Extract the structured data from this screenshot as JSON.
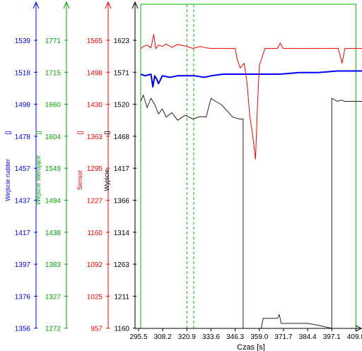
{
  "chart_data": {
    "type": "line",
    "xlabel": "Czas [s]",
    "xlim": [
      295.5,
      413.0
    ],
    "x_ticks": [
      "295.5",
      "308.2",
      "320.9",
      "333.6",
      "346.3",
      "359.0",
      "371.7",
      "384.4",
      "397.1",
      "409.8"
    ],
    "axes": [
      {
        "id": "rudder",
        "label": "Wejście rudder",
        "unit": "[]",
        "color": "#0000ff",
        "ylim": [
          1356,
          1560
        ],
        "ticks": [
          "1539",
          "1518",
          "1498",
          "1478",
          "1457",
          "1437",
          "1417",
          "1397",
          "1376",
          "1356"
        ]
      },
      {
        "id": "sterujace",
        "label": "Wejście sterujące",
        "unit": "[]",
        "color": "#00aa00",
        "ylim": [
          1272,
          1827
        ],
        "ticks": [
          "1771",
          "1715",
          "1660",
          "1604",
          "1549",
          "1494",
          "1438",
          "1383",
          "1327",
          "1272"
        ]
      },
      {
        "id": "sensor",
        "label": "Sensor",
        "unit": "[]",
        "color": "#ff0000",
        "ylim": [
          957,
          1633
        ],
        "ticks": [
          "1565",
          "1498",
          "1430",
          "1363",
          "1295",
          "1227",
          "1160",
          "1092",
          "1025",
          "957"
        ]
      },
      {
        "id": "wyjscie",
        "label": "Wyjście",
        "unit": "[]",
        "color": "#000000",
        "ylim": [
          1160,
          1674
        ],
        "ticks": [
          "1623",
          "1571",
          "1520",
          "1468",
          "1417",
          "1366",
          "1314",
          "1263",
          "1211",
          "1160"
        ]
      }
    ],
    "series": [
      {
        "axis": "sterujace",
        "color": "#00bb00",
        "x": [
          295.5,
          296.6,
          296.6,
          409.8,
          409.8,
          413.0
        ],
        "y": [
          1272,
          1272,
          1827,
          1827,
          1272,
          1272
        ]
      },
      {
        "axis": "rudder",
        "color": "#0000ff",
        "x": [
          296.6,
          299.0,
          302.0,
          303.0,
          304.0,
          305.0,
          306.0,
          308.0,
          312.0,
          316.0,
          320.0,
          325.0,
          330.0,
          333.6,
          340.0,
          350.0,
          360.0,
          370.0,
          380.0,
          390.0,
          400.0,
          413.0
        ],
        "y": [
          1516,
          1515,
          1516,
          1508,
          1515,
          1513,
          1510,
          1515,
          1514,
          1515,
          1515,
          1515,
          1514,
          1515,
          1516,
          1516,
          1516,
          1516,
          1517,
          1517,
          1518,
          1518
        ]
      },
      {
        "axis": "sensor",
        "color": "#ff0000",
        "x": [
          296.6,
          298.0,
          300.0,
          302.0,
          303.5,
          304.5,
          306.0,
          308.0,
          310.0,
          313.0,
          316.0,
          320.0,
          324.0,
          328.0,
          331.0,
          333.6,
          337.0,
          342.0,
          346.3,
          347.5,
          349.0,
          351.0,
          352.5,
          354.0,
          355.5,
          357.0,
          358.0,
          359.0,
          362.0,
          366.0,
          368.5,
          370.0,
          371.5,
          375.0,
          380.0,
          390.0,
          397.1,
          400.5,
          402.5,
          404.0,
          406.0,
          409.8,
          413.0
        ],
        "y": [
          1540,
          1545,
          1548,
          1542,
          1570,
          1540,
          1548,
          1545,
          1550,
          1543,
          1549,
          1546,
          1541,
          1545,
          1542,
          1541,
          1541,
          1541,
          1541,
          1516,
          1500,
          1510,
          1470,
          1400,
          1360,
          1310,
          1420,
          1505,
          1541,
          1541,
          1541,
          1552,
          1541,
          1541,
          1541,
          1541,
          1541,
          1541,
          1510,
          1541,
          1541,
          1541,
          1541
        ]
      },
      {
        "axis": "wyjscie",
        "color": "#3a1a1a",
        "x": [
          296.6,
          298.0,
          300.0,
          302.0,
          304.0,
          306.0,
          308.0,
          310.0,
          313.0,
          316.0,
          320.0,
          324.0,
          328.0,
          331.0,
          333.6,
          336.0,
          339.0,
          342.0,
          345.0,
          348.6,
          350.5,
          350.5,
          360.0,
          361.0,
          366.0,
          368.5,
          369.5,
          370.5,
          374.0,
          384.4,
          390.0,
          397.1,
          397.1,
          400.0,
          402.0,
          404.0,
          406.0,
          409.8,
          413.0
        ],
        "y": [
          1520,
          1530,
          1510,
          1525,
          1515,
          1500,
          1508,
          1495,
          1502,
          1490,
          1498,
          1492,
          1496,
          1495,
          1525,
          1520,
          1515,
          1505,
          1495,
          1492,
          1492,
          1160,
          1160,
          1176,
          1176,
          1176,
          1182,
          1168,
          1168,
          1168,
          1165,
          1160,
          1525,
          1520,
          1522,
          1520,
          1520,
          1520,
          1520
        ]
      }
    ],
    "cursors": [
      {
        "color": "#00bb00",
        "x": [
          320.9,
          324.5
        ]
      }
    ]
  }
}
